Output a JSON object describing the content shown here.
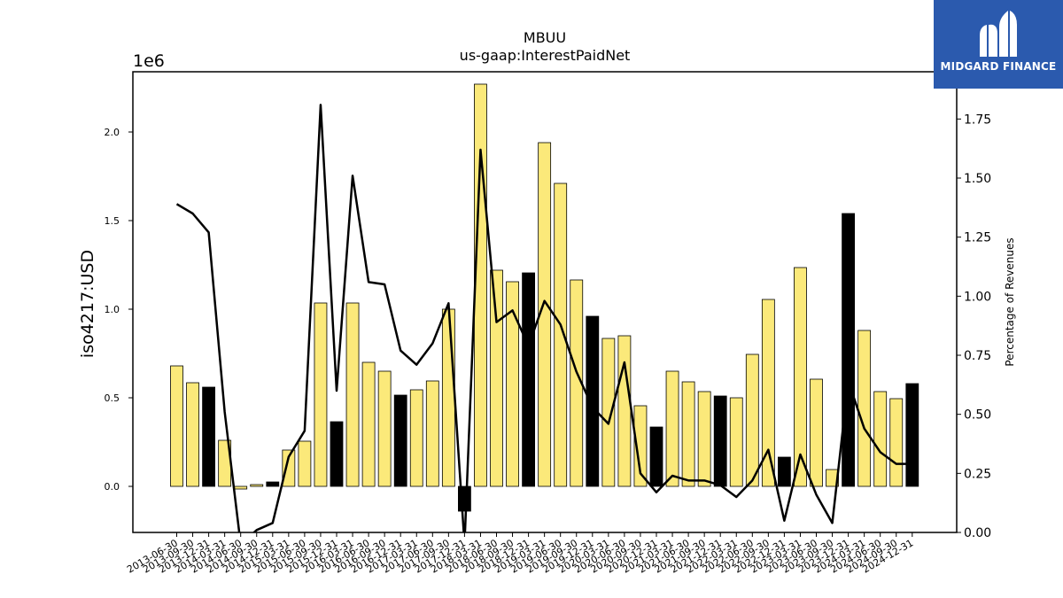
{
  "chart_data": {
    "type": "bar",
    "title": "MBUU",
    "subtitle": "us-gaap:InterestPaidNet",
    "ylabel": "iso4217:USD",
    "y_offset_text": "1e6",
    "y2label": "Percentage of Revenues",
    "ylim": [
      -260000,
      2340000
    ],
    "y2lim": [
      0.0,
      1.95
    ],
    "yticks": [
      "0.0",
      "0.5",
      "1.0",
      "1.5",
      "2.0"
    ],
    "y2ticks": [
      "0.00",
      "0.25",
      "0.50",
      "0.75",
      "1.00",
      "1.25",
      "1.50",
      "1.75"
    ],
    "categories": [
      "2013-06-30",
      "2013-09-30",
      "2013-12-31",
      "2014-03-31",
      "2014-06-30",
      "2014-09-30",
      "2014-12-31",
      "2015-03-31",
      "2015-06-30",
      "2015-09-30",
      "2015-12-31",
      "2016-03-31",
      "2016-06-30",
      "2016-09-30",
      "2016-12-31",
      "2017-03-31",
      "2017-06-30",
      "2017-09-30",
      "2017-12-31",
      "2018-03-31",
      "2018-06-30",
      "2018-09-30",
      "2018-12-31",
      "2019-03-31",
      "2019-06-30",
      "2019-09-30",
      "2019-12-31",
      "2020-03-31",
      "2020-06-30",
      "2020-09-30",
      "2020-12-31",
      "2021-03-31",
      "2021-06-30",
      "2021-09-30",
      "2021-12-31",
      "2022-03-31",
      "2022-06-30",
      "2022-09-30",
      "2022-12-31",
      "2023-03-31",
      "2023-06-30",
      "2023-09-30",
      "2023-12-31",
      "2024-03-31",
      "2024-06-30",
      "2024-09-30",
      "2024-12-31"
    ],
    "series": [
      {
        "kind": "bar",
        "values": [
          680000,
          585000,
          560000,
          260000,
          -15000,
          10000,
          25000,
          205000,
          255000,
          1035000,
          365000,
          1035000,
          700000,
          650000,
          515000,
          545000,
          595000,
          1000000,
          -140000,
          2270000,
          1220000,
          1155000,
          1205000,
          1940000,
          1710000,
          1165000,
          960000,
          835000,
          850000,
          455000,
          335000,
          650000,
          590000,
          535000,
          510000,
          500000,
          745000,
          1055000,
          165000,
          1235000,
          605000,
          95000,
          1540000,
          880000,
          535000,
          495000,
          580000
        ],
        "highlight": [
          false,
          false,
          true,
          false,
          false,
          false,
          true,
          false,
          false,
          false,
          true,
          false,
          false,
          false,
          true,
          false,
          false,
          false,
          true,
          false,
          false,
          false,
          true,
          false,
          false,
          false,
          true,
          false,
          false,
          false,
          true,
          false,
          false,
          false,
          true,
          false,
          false,
          false,
          true,
          false,
          false,
          false,
          true,
          false,
          false,
          false,
          true
        ],
        "colors": {
          "normal": "#fbe97a",
          "highlight": "#000000"
        }
      },
      {
        "kind": "line",
        "axis": "right",
        "values": [
          1.39,
          1.35,
          1.27,
          0.51,
          -0.05,
          0.01,
          0.04,
          0.32,
          0.43,
          1.81,
          0.6,
          1.51,
          1.06,
          1.05,
          0.77,
          0.71,
          0.8,
          0.97,
          -0.05,
          1.62,
          0.89,
          0.94,
          0.79,
          0.98,
          0.88,
          0.68,
          0.53,
          0.46,
          0.72,
          0.25,
          0.17,
          0.24,
          0.22,
          0.22,
          0.2,
          0.15,
          0.22,
          0.35,
          0.05,
          0.33,
          0.16,
          0.04,
          0.64,
          0.44,
          0.34,
          0.29,
          0.29
        ],
        "color": "#000000"
      }
    ],
    "grid": false,
    "legend": "none"
  },
  "logo": {
    "text": "MIDGARD FINANCE"
  }
}
